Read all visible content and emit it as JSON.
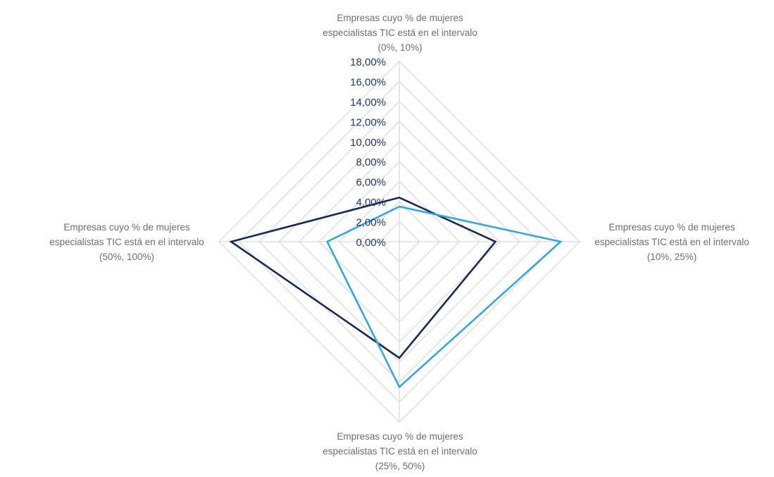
{
  "chart_data": {
    "type": "radar",
    "title": "",
    "axes": [
      {
        "line1": "Empresas cuyo % de mujeres",
        "line2": "especialistas TIC está en el intervalo",
        "line3": "(0%, 10%)"
      },
      {
        "line1": "Empresas cuyo % de mujeres",
        "line2": "especialistas TIC está en el intervalo",
        "line3": "(10%, 25%)"
      },
      {
        "line1": "Empresas cuyo % de mujeres",
        "line2": "especialistas TIC está en el intervalo",
        "line3": "(25%, 50%)"
      },
      {
        "line1": "Empresas cuyo % de mujeres",
        "line2": "especialistas TIC está en el intervalo",
        "line3": "(50%, 100%)"
      }
    ],
    "tick_labels": [
      "0,00%",
      "2,00%",
      "4,00%",
      "6,00%",
      "8,00%",
      "10,00%",
      "12,00%",
      "14,00%",
      "16,00%",
      "18,00%"
    ],
    "range": [
      0,
      18
    ],
    "grid": true,
    "legend": "none",
    "series": [
      {
        "color": "#162b5c",
        "values": [
          4.4,
          9.6,
          11.6,
          16.8
        ]
      },
      {
        "color": "#36a9d9",
        "values": [
          3.5,
          16.1,
          14.5,
          7.2
        ]
      }
    ]
  }
}
